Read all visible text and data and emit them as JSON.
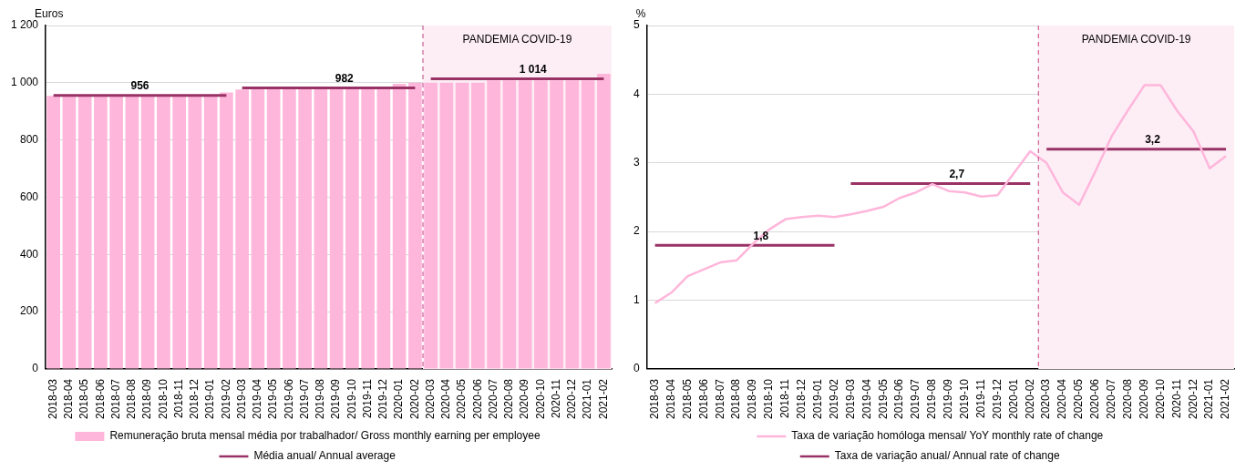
{
  "chart_data": [
    {
      "type": "bar",
      "ylabel": "Euros",
      "categories": [
        "2018-03",
        "2018-04",
        "2018-05",
        "2018-06",
        "2018-07",
        "2018-08",
        "2018-09",
        "2018-10",
        "2018-11",
        "2018-12",
        "2019-01",
        "2019-02",
        "2019-03",
        "2019-04",
        "2019-05",
        "2019-06",
        "2019-07",
        "2019-08",
        "2019-09",
        "2019-10",
        "2019-11",
        "2019-12",
        "2020-01",
        "2020-02",
        "2020-03",
        "2020-04",
        "2020-05",
        "2020-06",
        "2020-07",
        "2020-08",
        "2020-09",
        "2020-10",
        "2020-11",
        "2020-12",
        "2021-01",
        "2021-02"
      ],
      "ylim": [
        0,
        1200
      ],
      "yticks": [
        0,
        200,
        400,
        600,
        800,
        {
          "value": 1000,
          "label": "1 000"
        },
        {
          "value": 1200,
          "label": "1 200"
        }
      ],
      "grid": "y",
      "legend": "bottom",
      "marker": "none",
      "bands": [
        {
          "axis": "x",
          "from": "2020-03",
          "to": "2021-02",
          "label": "PANDEMIA COVID-19",
          "color": "#fdeef6"
        }
      ],
      "ref_lines": [
        {
          "axis": "x",
          "value": "2020-03",
          "color": "#c0407f",
          "line_style": "dashed"
        }
      ],
      "series": [
        {
          "name": "Remuneração bruta mensal média por trabalhador/ Gross monthly earning per employee",
          "type": "bar",
          "color": "#ffb6db",
          "values": [
            954,
            954,
            954,
            954,
            954,
            954,
            954,
            954,
            954,
            954,
            954,
            966,
            976,
            978,
            978,
            978,
            978,
            978,
            978,
            978,
            978,
            986,
            996,
            1000,
            1000,
            1000,
            1000,
            1000,
            1008,
            1008,
            1008,
            1008,
            1008,
            1008,
            1008,
            1031
          ]
        },
        {
          "name": "Média anual/ Annual average",
          "type": "line",
          "color": "#993366",
          "values": [
            956,
            956,
            956,
            956,
            956,
            956,
            956,
            956,
            956,
            956,
            956,
            956,
            null,
            null,
            null,
            null,
            null,
            null,
            null,
            null,
            null,
            null,
            null,
            null,
            null,
            null,
            null,
            null,
            null,
            null,
            null,
            null,
            null,
            null,
            null,
            null
          ],
          "value_labels": [
            null,
            null,
            null,
            null,
            null,
            "956",
            null,
            null,
            null,
            null,
            null,
            null,
            null,
            null,
            null,
            null,
            null,
            null,
            null,
            null,
            null,
            null,
            null,
            null,
            null,
            null,
            null,
            null,
            null,
            null,
            null,
            null,
            null,
            null,
            null,
            null
          ]
        },
        {
          "type": "line",
          "color": "#993366",
          "values": [
            null,
            null,
            null,
            null,
            null,
            null,
            null,
            null,
            null,
            null,
            null,
            null,
            982,
            982,
            982,
            982,
            982,
            982,
            982,
            982,
            982,
            982,
            982,
            982,
            null,
            null,
            null,
            null,
            null,
            null,
            null,
            null,
            null,
            null,
            null,
            null
          ],
          "value_labels": [
            null,
            null,
            null,
            null,
            null,
            null,
            null,
            null,
            null,
            null,
            null,
            null,
            null,
            null,
            null,
            null,
            null,
            null,
            "982",
            null,
            null,
            null,
            null,
            null,
            null,
            null,
            null,
            null,
            null,
            null,
            null,
            null,
            null,
            null,
            null,
            null
          ]
        },
        {
          "type": "line",
          "color": "#993366",
          "values": [
            null,
            null,
            null,
            null,
            null,
            null,
            null,
            null,
            null,
            null,
            null,
            null,
            null,
            null,
            null,
            null,
            null,
            null,
            null,
            null,
            null,
            null,
            null,
            null,
            1014,
            1014,
            1014,
            1014,
            1014,
            1014,
            1014,
            1014,
            1014,
            1014,
            1014,
            1014
          ],
          "value_labels": [
            null,
            null,
            null,
            null,
            null,
            null,
            null,
            null,
            null,
            null,
            null,
            null,
            null,
            null,
            null,
            null,
            null,
            null,
            null,
            null,
            null,
            null,
            null,
            null,
            null,
            null,
            null,
            null,
            null,
            null,
            "1 014",
            null,
            null,
            null,
            null,
            null
          ]
        }
      ]
    },
    {
      "type": "line",
      "ylabel": "%",
      "categories": [
        "2018-03",
        "2018-04",
        "2018-05",
        "2018-06",
        "2018-07",
        "2018-08",
        "2018-09",
        "2018-10",
        "2018-11",
        "2018-12",
        "2019-01",
        "2019-02",
        "2019-03",
        "2019-04",
        "2019-05",
        "2019-06",
        "2019-07",
        "2019-08",
        "2019-09",
        "2019-10",
        "2019-11",
        "2019-12",
        "2020-01",
        "2020-02",
        "2020-03",
        "2020-04",
        "2020-05",
        "2020-06",
        "2020-07",
        "2020-08",
        "2020-09",
        "2020-10",
        "2020-11",
        "2020-12",
        "2021-01",
        "2021-02"
      ],
      "ylim": [
        0,
        5
      ],
      "yticks": [
        0,
        1,
        2,
        3,
        4,
        5
      ],
      "grid": "y",
      "legend": "bottom",
      "marker": "none",
      "bands": [
        {
          "axis": "x",
          "from": "2020-03",
          "to": "2021-02",
          "label": "PANDEMIA COVID-19",
          "color": "#fdeef6"
        }
      ],
      "ref_lines": [
        {
          "axis": "x",
          "value": "2020-03",
          "color": "#c0407f",
          "line_style": "dashed"
        }
      ],
      "series": [
        {
          "name": "Taxa de variação homóloga mensal/ YoY monthly rate of change",
          "type": "line",
          "color": "#ffb6db",
          "values": [
            0.96,
            1.11,
            1.35,
            1.45,
            1.55,
            1.58,
            1.82,
            2.03,
            2.18,
            2.21,
            2.23,
            2.21,
            2.25,
            2.3,
            2.36,
            2.49,
            2.57,
            2.69,
            2.59,
            2.57,
            2.51,
            2.53,
            2.85,
            3.17,
            3.0,
            2.57,
            2.39,
            2.88,
            3.39,
            3.77,
            4.13,
            4.13,
            3.76,
            3.46,
            2.92,
            3.1
          ]
        },
        {
          "name": "Taxa de variação anual/ Annual rate of change",
          "type": "line",
          "color": "#993366",
          "values": [
            1.8,
            1.8,
            1.8,
            1.8,
            1.8,
            1.8,
            1.8,
            1.8,
            1.8,
            1.8,
            1.8,
            1.8,
            null,
            null,
            null,
            null,
            null,
            null,
            null,
            null,
            null,
            null,
            null,
            null,
            null,
            null,
            null,
            null,
            null,
            null,
            null,
            null,
            null,
            null,
            null,
            null
          ],
          "value_labels": [
            null,
            null,
            null,
            null,
            null,
            null,
            "1,8",
            null,
            null,
            null,
            null,
            null,
            null,
            null,
            null,
            null,
            null,
            null,
            null,
            null,
            null,
            null,
            null,
            null,
            null,
            null,
            null,
            null,
            null,
            null,
            null,
            null,
            null,
            null,
            null,
            null
          ]
        },
        {
          "type": "line",
          "color": "#993366",
          "values": [
            null,
            null,
            null,
            null,
            null,
            null,
            null,
            null,
            null,
            null,
            null,
            null,
            2.7,
            2.7,
            2.7,
            2.7,
            2.7,
            2.7,
            2.7,
            2.7,
            2.7,
            2.7,
            2.7,
            2.7,
            null,
            null,
            null,
            null,
            null,
            null,
            null,
            null,
            null,
            null,
            null,
            null
          ],
          "value_labels": [
            null,
            null,
            null,
            null,
            null,
            null,
            null,
            null,
            null,
            null,
            null,
            null,
            null,
            null,
            null,
            null,
            null,
            null,
            "2,7",
            null,
            null,
            null,
            null,
            null,
            null,
            null,
            null,
            null,
            null,
            null,
            null,
            null,
            null,
            null,
            null,
            null
          ]
        },
        {
          "type": "line",
          "color": "#993366",
          "values": [
            null,
            null,
            null,
            null,
            null,
            null,
            null,
            null,
            null,
            null,
            null,
            null,
            null,
            null,
            null,
            null,
            null,
            null,
            null,
            null,
            null,
            null,
            null,
            null,
            3.2,
            3.2,
            3.2,
            3.2,
            3.2,
            3.2,
            3.2,
            3.2,
            3.2,
            3.2,
            3.2,
            3.2
          ],
          "value_labels": [
            null,
            null,
            null,
            null,
            null,
            null,
            null,
            null,
            null,
            null,
            null,
            null,
            null,
            null,
            null,
            null,
            null,
            null,
            null,
            null,
            null,
            null,
            null,
            null,
            null,
            null,
            null,
            null,
            null,
            null,
            "3,2",
            null,
            null,
            null,
            null,
            null
          ]
        }
      ]
    }
  ]
}
